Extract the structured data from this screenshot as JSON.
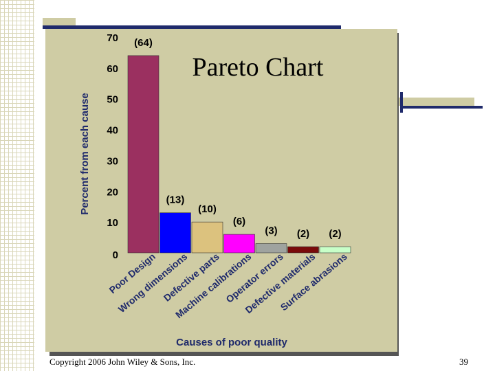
{
  "slide": {
    "copyright": "Copyright 2006 John Wiley & Sons, Inc.",
    "page_number": "39"
  },
  "chart_data": {
    "type": "bar",
    "title": "Pareto Chart",
    "xlabel": "Causes of poor quality",
    "ylabel": "Percent from each cause",
    "ylim": [
      0,
      70
    ],
    "yticks": [
      0,
      10,
      20,
      30,
      40,
      50,
      60,
      70
    ],
    "grid": false,
    "categories": [
      "Poor Design",
      "Wrong dimensions",
      "Defective parts",
      "Machine calibrations",
      "Operator errors",
      "Defective materials",
      "Surface abrasions"
    ],
    "values": [
      64,
      13,
      10,
      6,
      3,
      2,
      2
    ],
    "data_labels": [
      "(64)",
      "(13)",
      "(10)",
      "(6)",
      "(3)",
      "(2)",
      "(2)"
    ],
    "colors": [
      "#9b3060",
      "#0000ff",
      "#dcc27e",
      "#ff00ff",
      "#9fa39f",
      "#7a0a0a",
      "#c8ffc8"
    ]
  }
}
